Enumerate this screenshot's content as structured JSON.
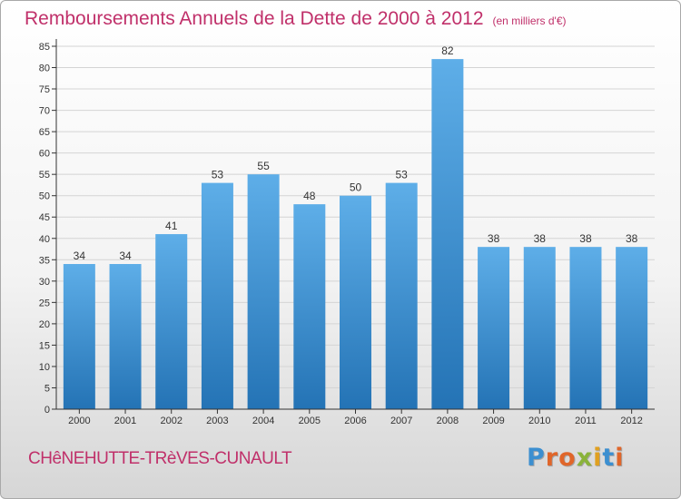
{
  "chart_data": {
    "type": "bar",
    "title": "Remboursements Annuels de la Dette de 2000 à 2012",
    "unit_note": "(en milliers d'€)",
    "categories": [
      "2000",
      "2001",
      "2002",
      "2003",
      "2004",
      "2005",
      "2006",
      "2007",
      "2008",
      "2009",
      "2010",
      "2011",
      "2012"
    ],
    "values": [
      34,
      34,
      41,
      53,
      55,
      48,
      50,
      53,
      82,
      38,
      38,
      38,
      38
    ],
    "xlabel": "",
    "ylabel": "",
    "ylim": [
      0,
      85
    ],
    "yticks": [
      0,
      5,
      10,
      15,
      20,
      25,
      30,
      35,
      40,
      45,
      50,
      55,
      60,
      65,
      70,
      75,
      80,
      85
    ],
    "grid": true,
    "bar_color_top": "#5eaee8",
    "bar_color_bottom": "#2473b5"
  },
  "footer": {
    "commune": "CHêNEHUTTE-TRèVES-CUNAULT",
    "brand_letters": [
      {
        "ch": "P",
        "color": "#3c8fd0"
      },
      {
        "ch": "r",
        "color": "#e0662a"
      },
      {
        "ch": "o",
        "color": "#e0662a"
      },
      {
        "ch": "x",
        "color": "#8ab33a"
      },
      {
        "ch": "i",
        "color": "#e0a020"
      },
      {
        "ch": "t",
        "color": "#3c8fd0"
      },
      {
        "ch": "i",
        "color": "#e0662a"
      }
    ]
  },
  "colors": {
    "title": "#c0306a",
    "grid": "#d4d4d4",
    "axis": "#333333"
  }
}
